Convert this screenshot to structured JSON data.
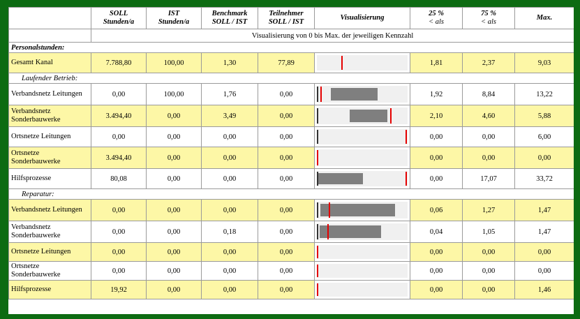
{
  "headers": {
    "col0": "",
    "soll": [
      "SOLL",
      "Stunden/a"
    ],
    "ist": [
      "IST",
      "Stunden/a"
    ],
    "benchmark": [
      "Benchmark",
      "SOLL / IST"
    ],
    "teilnehmer": [
      "Teilnehmer",
      "SOLL / IST"
    ],
    "visualisierung": "Visualisierung",
    "p25": [
      "25 %",
      "< als"
    ],
    "p75": [
      "75 %",
      "< als"
    ],
    "max": "Max."
  },
  "caption": "Visualisierung von 0 bis Max. der jeweiligen Kennzahl",
  "sections": {
    "personal": "Personalstunden:",
    "laufend": "Laufender Betrieb:",
    "reparatur": "Reparatur:"
  },
  "rows": [
    {
      "label": "Gesamt Kanal",
      "soll": "7.788,80",
      "ist": "100,00",
      "benchmark": "1,30",
      "teilnehmer": "77,89",
      "p25": "1,81",
      "p75": "2,37",
      "max": "9,03",
      "vis": {
        "bar_from": null,
        "bar_to": null,
        "marker": 0.27,
        "tick": null
      }
    },
    {
      "label": "Verbandsnetz Leitungen",
      "soll": "0,00",
      "ist": "100,00",
      "benchmark": "1,76",
      "teilnehmer": "0,00",
      "p25": "1,92",
      "p75": "8,84",
      "max": "13,22",
      "vis": {
        "bar_from": 0.15,
        "bar_to": 0.67,
        "marker": 0.04,
        "tick": 0.0
      }
    },
    {
      "label": "Verbandsnetz Sonderbauwerke",
      "soll": "3.494,40",
      "ist": "0,00",
      "benchmark": "3,49",
      "teilnehmer": "0,00",
      "p25": "2,10",
      "p75": "4,60",
      "max": "5,88",
      "vis": {
        "bar_from": 0.36,
        "bar_to": 0.78,
        "marker": 0.82,
        "tick": 0.0
      }
    },
    {
      "label": "Ortsnetze Leitungen",
      "soll": "0,00",
      "ist": "0,00",
      "benchmark": "0,00",
      "teilnehmer": "0,00",
      "p25": "0,00",
      "p75": "0,00",
      "max": "6,00",
      "vis": {
        "bar_from": null,
        "bar_to": null,
        "marker": 0.99,
        "tick": 0.0
      }
    },
    {
      "label": "Ortsnetze Sonderbauwerke",
      "soll": "3.494,40",
      "ist": "0,00",
      "benchmark": "0,00",
      "teilnehmer": "0,00",
      "p25": "0,00",
      "p75": "0,00",
      "max": "0,00",
      "vis": {
        "bar_from": null,
        "bar_to": null,
        "marker": 0.0,
        "tick": null
      }
    },
    {
      "label": "Hilfsprozesse",
      "soll": "80,08",
      "ist": "0,00",
      "benchmark": "0,00",
      "teilnehmer": "0,00",
      "p25": "0,00",
      "p75": "17,07",
      "max": "33,72",
      "vis": {
        "bar_from": 0.0,
        "bar_to": 0.51,
        "marker": 0.99,
        "tick": 0.0
      }
    },
    {
      "label": "Verbandsnetz Leitungen",
      "soll": "0,00",
      "ist": "0,00",
      "benchmark": "0,00",
      "teilnehmer": "0,00",
      "p25": "0,06",
      "p75": "1,27",
      "max": "1,47",
      "vis": {
        "bar_from": 0.04,
        "bar_to": 0.86,
        "marker": 0.13,
        "tick": 0.0
      }
    },
    {
      "label": "Verbandsnetz Sonderbauwerke",
      "soll": "0,00",
      "ist": "0,00",
      "benchmark": "0,18",
      "teilnehmer": "0,00",
      "p25": "0,04",
      "p75": "1,05",
      "max": "1,47",
      "vis": {
        "bar_from": 0.03,
        "bar_to": 0.71,
        "marker": 0.12,
        "tick": 0.0
      }
    },
    {
      "label": "Ortsnetze Leitungen",
      "soll": "0,00",
      "ist": "0,00",
      "benchmark": "0,00",
      "teilnehmer": "0,00",
      "p25": "0,00",
      "p75": "0,00",
      "max": "0,00",
      "vis": {
        "bar_from": null,
        "bar_to": null,
        "marker": 0.0,
        "tick": null
      }
    },
    {
      "label": "Ortsnetze Sonderbauwerke",
      "soll": "0,00",
      "ist": "0,00",
      "benchmark": "0,00",
      "teilnehmer": "0,00",
      "p25": "0,00",
      "p75": "0,00",
      "max": "0,00",
      "vis": {
        "bar_from": null,
        "bar_to": null,
        "marker": 0.0,
        "tick": null
      }
    },
    {
      "label": "Hilfsprozesse",
      "soll": "19,92",
      "ist": "0,00",
      "benchmark": "0,00",
      "teilnehmer": "0,00",
      "p25": "0,00",
      "p75": "0,00",
      "max": "1,46",
      "vis": {
        "bar_from": null,
        "bar_to": null,
        "marker": 0.0,
        "tick": null
      }
    }
  ],
  "colors": {
    "highlight_row": "#fdf7a6",
    "marker": "#e50000",
    "bar": "#7f7f7f",
    "frame": "#0d6b12"
  }
}
